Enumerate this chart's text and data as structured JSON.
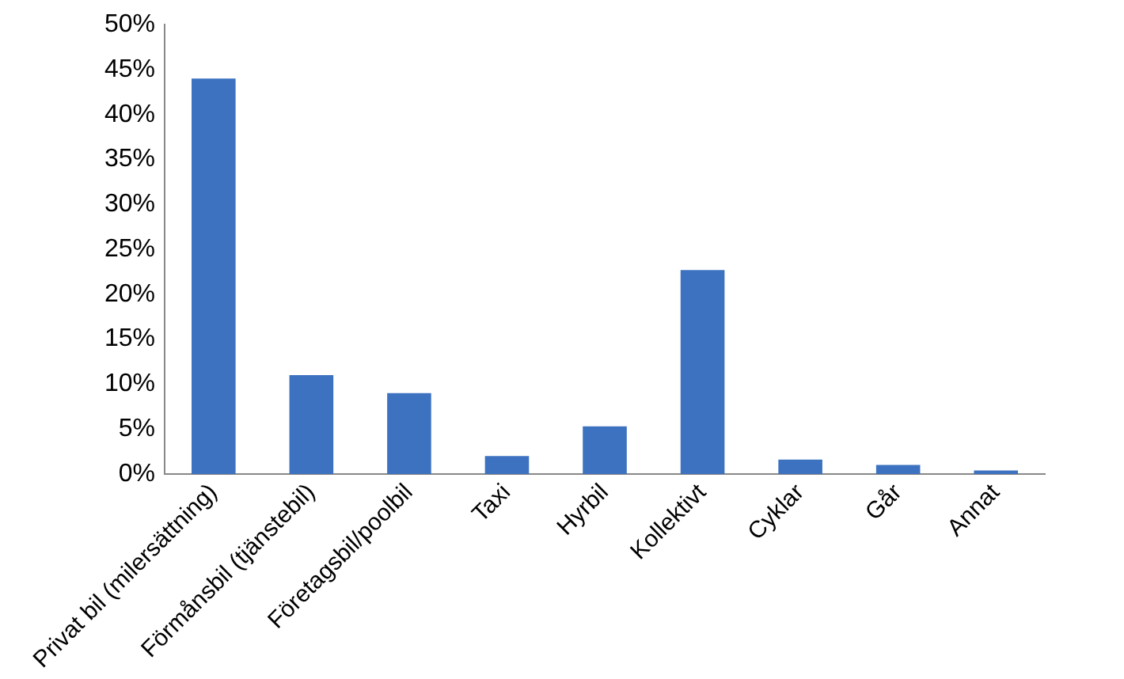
{
  "chart_data": {
    "type": "bar",
    "categories": [
      "Privat bil (milersättning)",
      "Förmånsbil (tjänstebil)",
      "Företagsbil/poolbil",
      "Taxi",
      "Hyrbil",
      "Kollektivt",
      "Cyklar",
      "Går",
      "Annat"
    ],
    "values": [
      44,
      11,
      9,
      2,
      5.3,
      22.7,
      1.6,
      1,
      0.4
    ],
    "color": "#3d72c0",
    "ylim": [
      0,
      50
    ],
    "yticks": [
      {
        "value": 0,
        "label": "0%"
      },
      {
        "value": 5,
        "label": "5%"
      },
      {
        "value": 10,
        "label": "10%"
      },
      {
        "value": 15,
        "label": "15%"
      },
      {
        "value": 20,
        "label": "20%"
      },
      {
        "value": 25,
        "label": "25%"
      },
      {
        "value": 30,
        "label": "30%"
      },
      {
        "value": 35,
        "label": "35%"
      },
      {
        "value": 40,
        "label": "40%"
      },
      {
        "value": 45,
        "label": "45%"
      },
      {
        "value": 50,
        "label": "50%"
      }
    ],
    "grid": false,
    "legend": false
  }
}
